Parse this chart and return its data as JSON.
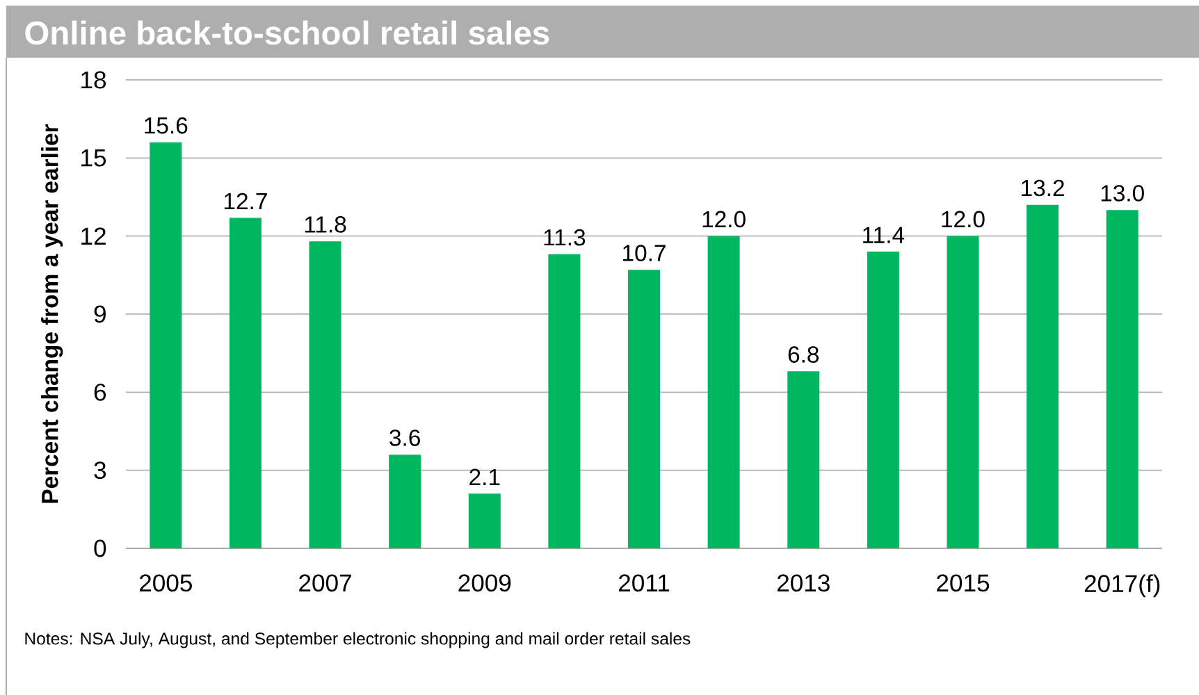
{
  "chart_data": {
    "type": "bar",
    "title": "Online back-to-school retail sales",
    "ylabel": "Percent change from a year earlier",
    "categories": [
      "2005",
      null,
      "2007",
      null,
      "2009",
      null,
      "2011",
      null,
      "2013",
      null,
      "2015",
      null,
      "2017(f)"
    ],
    "values": [
      15.6,
      12.7,
      11.8,
      3.6,
      2.1,
      11.3,
      10.7,
      12.0,
      6.8,
      11.4,
      12.0,
      13.2,
      13.0
    ],
    "value_labels": [
      "15.6",
      "12.7",
      "11.8",
      "3.6",
      "2.1",
      "11.3",
      "10.7",
      "12.0",
      "6.8",
      "11.4",
      "12.0",
      "13.2",
      "13.0"
    ],
    "color": "#00b760",
    "ylim": [
      0,
      18
    ],
    "yticks": [
      0,
      3,
      6,
      9,
      12,
      15,
      18
    ],
    "grid": "y",
    "annotations": [
      "Notes: NSA July, August, and September electronic shopping and mail order retail sales"
    ]
  }
}
